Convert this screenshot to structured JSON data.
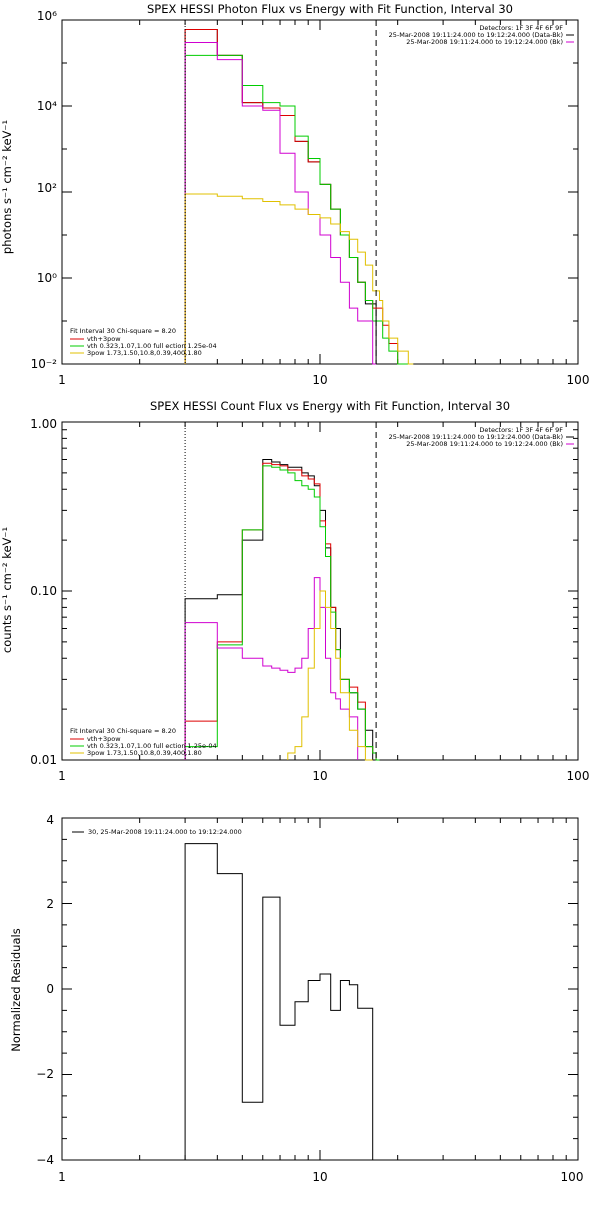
{
  "chart_data": [
    {
      "type": "line",
      "title": "SPEX HESSI Photon Flux vs Energy with Fit Function, Interval 30",
      "xlabel": "",
      "ylabel": "photons s⁻¹ cm⁻² keV⁻¹",
      "xscale": "log",
      "yscale": "log",
      "xlim": [
        1,
        100
      ],
      "ylim": [
        0.01,
        1000000
      ],
      "x_ticks": [
        1,
        10,
        100
      ],
      "x_tick_labels": [
        "1",
        "10",
        "100"
      ],
      "y_ticks": [
        0.01,
        1,
        100,
        10000,
        1000000
      ],
      "y_tick_labels": [
        "10⁻²",
        "10⁰",
        "10²",
        "10⁴",
        "10⁶"
      ],
      "vlines": [
        {
          "x": 3,
          "style": "dotted"
        },
        {
          "x": 16.5,
          "style": "dashed"
        }
      ],
      "detectors_text": "Detectors: 1F 3F 4F 6F 9F",
      "legend_top": [
        {
          "label": "25-Mar-2008 19:11:24.000 to 19:12:24.000 (Data-Bk)",
          "color": "#000000"
        },
        {
          "label": "25-Mar-2008 19:11:24.000 to 19:12:24.000 (Bk)",
          "color": "#d000d0"
        }
      ],
      "legend_bottom": {
        "title": "Fit Interval 30   Chi-square = 8.20",
        "entries": [
          {
            "label": "vth+3pow",
            "color": "#dd0000"
          },
          {
            "label": "vth 0.323,1.07,1.00   full ection 1.25e-04",
            "color": "#00cc00"
          },
          {
            "label": "3pow 1.73,1.50,10.8,0.39,400,1.80",
            "color": "#e0c000"
          }
        ]
      },
      "edges": [
        3,
        3.5,
        4,
        4.5,
        5,
        5.5,
        6,
        6.5,
        7,
        7.5,
        8,
        8.5,
        9,
        9.5,
        10,
        10.5,
        11,
        11.5,
        12,
        12.5,
        13,
        13.5,
        14,
        14.5,
        15,
        15.5,
        16,
        16.5,
        17,
        17.5,
        18,
        18.5,
        19,
        20,
        21,
        22,
        23
      ],
      "series": [
        {
          "color": "#000000",
          "values": [
            600000,
            600000,
            150000,
            150000,
            12000,
            12000,
            9000,
            9000,
            6000,
            6000,
            1500,
            1500,
            500,
            500,
            150,
            150,
            40,
            40,
            10,
            10,
            3,
            3,
            0.8,
            0.8,
            0.25,
            0.25,
            0.25,
            null,
            null,
            null,
            null,
            null,
            null,
            null,
            null,
            null
          ]
        },
        {
          "color": "#dd0000",
          "values": [
            600000,
            600000,
            150000,
            150000,
            12000,
            12000,
            9000,
            9000,
            6000,
            6000,
            1500,
            1500,
            500,
            500,
            150,
            150,
            40,
            40,
            10,
            10,
            3,
            3,
            0.8,
            0.8,
            0.3,
            0.3,
            0.2,
            0.2,
            0.2,
            0.08,
            0.08,
            0.03,
            0.03,
            0.01,
            0.01,
            null
          ]
        },
        {
          "color": "#00cc00",
          "values": [
            150000,
            150000,
            150000,
            150000,
            30000,
            30000,
            12000,
            12000,
            10000,
            10000,
            2000,
            2000,
            600,
            600,
            150,
            150,
            40,
            40,
            10,
            10,
            3,
            3,
            0.8,
            0.8,
            0.3,
            0.3,
            0.1,
            0.1,
            0.1,
            0.04,
            0.04,
            0.02,
            0.02,
            0.01,
            0.01,
            null
          ]
        },
        {
          "color": "#d000d0",
          "values": [
            300000,
            300000,
            120000,
            120000,
            10000,
            10000,
            8000,
            8000,
            800,
            800,
            100,
            100,
            30,
            30,
            10,
            10,
            3,
            3,
            0.8,
            0.8,
            0.2,
            0.2,
            0.1,
            0.1,
            0.1,
            0.1,
            0.01,
            null,
            null,
            null,
            null,
            null,
            null,
            null,
            null,
            null
          ]
        },
        {
          "color": "#e0c000",
          "values": [
            90,
            90,
            80,
            80,
            70,
            70,
            60,
            60,
            50,
            50,
            40,
            40,
            30,
            30,
            25,
            25,
            18,
            18,
            12,
            12,
            8,
            8,
            4,
            4,
            2,
            2,
            0.5,
            0.5,
            0.3,
            0.1,
            0.1,
            0.04,
            0.04,
            0.02,
            0.02,
            0.01
          ]
        }
      ]
    },
    {
      "type": "line",
      "title": "SPEX HESSI Count Flux vs Energy with Fit Function, Interval 30",
      "xlabel": "",
      "ylabel": "counts s⁻¹ cm⁻² keV⁻¹",
      "xscale": "log",
      "yscale": "log",
      "xlim": [
        1,
        100
      ],
      "ylim": [
        0.01,
        1
      ],
      "x_ticks": [
        1,
        10,
        100
      ],
      "x_tick_labels": [
        "1",
        "10",
        "100"
      ],
      "y_ticks": [
        0.01,
        0.1,
        1
      ],
      "y_tick_labels": [
        "0.01",
        "0.10",
        "1.00"
      ],
      "vlines": [
        {
          "x": 3,
          "style": "dotted"
        },
        {
          "x": 16.5,
          "style": "dashed"
        }
      ],
      "detectors_text": "Detectors: 1F 3F 4F 6F 9F",
      "legend_top": [
        {
          "label": "25-Mar-2008 19:11:24.000 to 19:12:24.000 (Data-Bk)",
          "color": "#000000"
        },
        {
          "label": "25-Mar-2008 19:11:24.000 to 19:12:24.000 (Bk)",
          "color": "#d000d0"
        }
      ],
      "legend_bottom": {
        "title": "Fit Interval 30   Chi-square = 8.20",
        "entries": [
          {
            "label": "vth+3pow",
            "color": "#dd0000"
          },
          {
            "label": "vth 0.323,1.07,1.00   full ection 1.25e-04",
            "color": "#00cc00"
          },
          {
            "label": "3pow 1.73,1.50,10.8,0.39,400,1.80",
            "color": "#e0c000"
          }
        ]
      },
      "edges": [
        3,
        4,
        5,
        6,
        6.5,
        7,
        7.5,
        8,
        8.5,
        9,
        9.5,
        10,
        10.5,
        11,
        11.5,
        12,
        13,
        14,
        15,
        16,
        16.5,
        17,
        18
      ],
      "series": [
        {
          "color": "#000000",
          "values": [
            0.09,
            0.095,
            0.2,
            0.6,
            0.58,
            0.56,
            0.54,
            0.54,
            0.5,
            0.48,
            0.42,
            0.3,
            0.18,
            0.08,
            0.06,
            0.03,
            0.025,
            0.02,
            0.015,
            null,
            null,
            null
          ]
        },
        {
          "color": "#dd0000",
          "values": [
            0.017,
            0.05,
            0.23,
            0.57,
            0.56,
            0.55,
            0.52,
            0.52,
            0.48,
            0.46,
            0.43,
            0.26,
            0.19,
            0.08,
            0.045,
            0.03,
            0.027,
            0.022,
            0.012,
            0.011,
            0.01,
            null
          ]
        },
        {
          "color": "#00cc00",
          "values": [
            0.012,
            0.048,
            0.23,
            0.55,
            0.54,
            0.52,
            0.5,
            0.45,
            0.42,
            0.4,
            0.36,
            0.24,
            0.16,
            0.075,
            0.045,
            0.03,
            0.025,
            0.02,
            0.012,
            0.011,
            0.01,
            null
          ]
        },
        {
          "color": "#d000d0",
          "values": [
            0.065,
            0.046,
            0.04,
            0.036,
            0.035,
            0.034,
            0.033,
            0.035,
            0.04,
            0.06,
            0.12,
            0.08,
            0.04,
            0.025,
            0.023,
            0.02,
            0.018,
            null,
            null,
            null,
            null,
            null
          ]
        },
        {
          "color": "#e0c000",
          "values": [
            null,
            null,
            null,
            null,
            null,
            null,
            0.011,
            0.012,
            0.018,
            0.035,
            0.06,
            0.1,
            0.08,
            0.06,
            0.04,
            0.025,
            0.015,
            0.012,
            0.01,
            null,
            null,
            null
          ]
        }
      ]
    },
    {
      "type": "line",
      "title": "",
      "xlabel": "",
      "ylabel": "Normalized Residuals",
      "xscale": "log",
      "yscale": "linear",
      "xlim": [
        1,
        100
      ],
      "ylim": [
        -4,
        4
      ],
      "x_ticks": [
        1,
        10,
        100
      ],
      "x_tick_labels": [
        "1",
        "10",
        "100"
      ],
      "y_ticks": [
        -4,
        -2,
        0,
        2,
        4
      ],
      "y_tick_labels": [
        "−4",
        "−2",
        "0",
        "2",
        "4"
      ],
      "legend_top_left": "30, 25-Mar-2008 19:11:24.000 to 19:12:24.000",
      "edges": [
        3,
        4,
        5,
        6,
        6.5,
        7,
        7.5,
        8,
        9,
        10,
        11,
        12,
        13,
        14,
        15,
        16,
        17
      ],
      "series": [
        {
          "color": "#000000",
          "values": [
            3.4,
            2.7,
            -2.65,
            2.15,
            2.15,
            -0.85,
            -0.85,
            -0.3,
            0.2,
            0.35,
            -0.5,
            0.2,
            0.1,
            -0.45,
            -0.45,
            -4
          ]
        }
      ]
    }
  ]
}
